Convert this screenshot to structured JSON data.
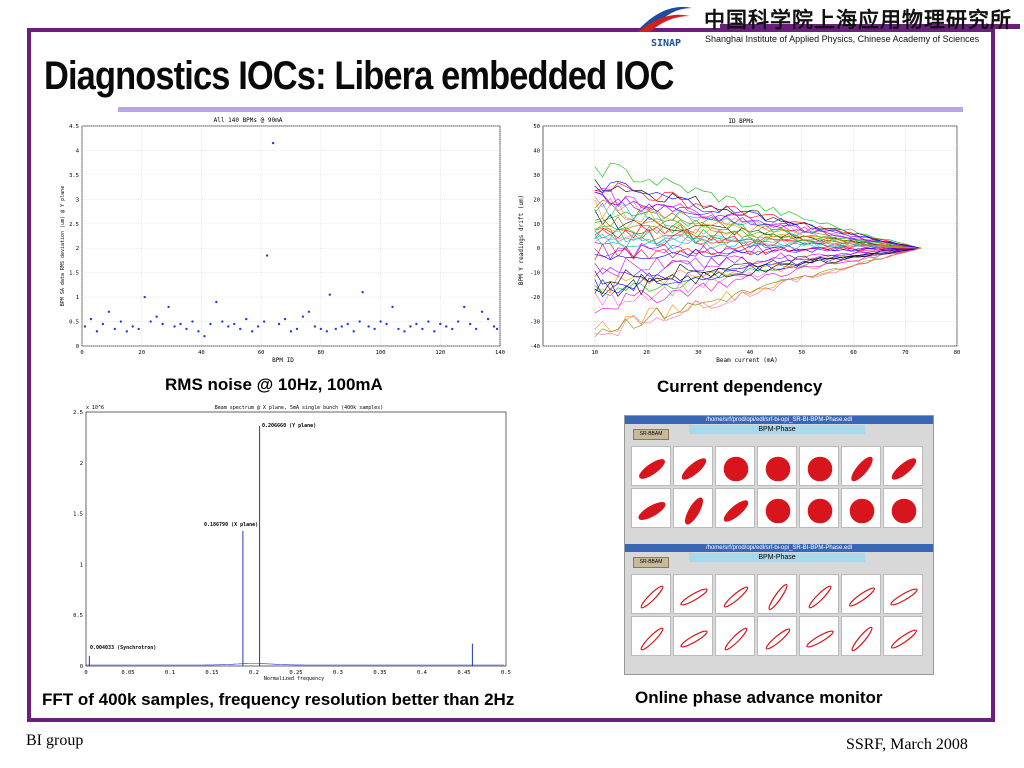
{
  "header": {
    "title": "Diagnostics IOCs: Libera embedded IOC",
    "institute_cn": "中国科学院上海应用物理研究所",
    "institute_en": "Shanghai Institute of Applied Physics, Chinese Academy of Sciences",
    "logo_text": "SINAP"
  },
  "colors": {
    "frame": "#6b1f7c",
    "title_bar": "#b9a6e6",
    "plot_points": "#1f3fd6",
    "phase": "#d8141c"
  },
  "panels": {
    "rms": {
      "caption": "RMS noise @ 10Hz, 100mA",
      "title": "All 140 BPMs @ 90mA",
      "xlabel": "BPM ID",
      "ylabel": "BPM SA data RMS deviation (um) @ Y plane",
      "xticks": [
        "0",
        "20",
        "40",
        "60",
        "80",
        "100",
        "120",
        "140"
      ],
      "yticks": [
        "0",
        "0.5",
        "1",
        "1.5",
        "2",
        "2.5",
        "3",
        "3.5",
        "4",
        "4.5"
      ]
    },
    "drift": {
      "caption": "Current dependency",
      "title": "ID BPMs",
      "xlabel": "Beam current (mA)",
      "ylabel": "BPM Y readings drift (um)",
      "xticks": [
        "10",
        "20",
        "30",
        "40",
        "50",
        "60",
        "70",
        "80"
      ],
      "yticks": [
        "-40",
        "-30",
        "-20",
        "-10",
        "0",
        "10",
        "20",
        "30",
        "40",
        "50"
      ]
    },
    "fft": {
      "caption": "FFT of 400k samples, frequency resolution better than 2Hz",
      "title": "Beam spectrum @ X plane, 5mA single bunch (400k samples)",
      "xlabel": "Normalized frequency",
      "exponent": "x 10^6",
      "xticks": [
        "0",
        "0.05",
        "0.1",
        "0.15",
        "0.2",
        "0.25",
        "0.3",
        "0.35",
        "0.4",
        "0.45",
        "0.5"
      ],
      "yticks": [
        "0",
        "0.5",
        "1",
        "1.5",
        "2",
        "2.5"
      ],
      "annotations": {
        "y_peak": "0.206660 (Y plane)",
        "x_peak": "0.186790 (X plane)",
        "sync": "0.004033 (Synchrotron)"
      }
    },
    "phase": {
      "caption": "Online phase advance monitor",
      "window_title": "/home/srf/prod/opi/edl/srf-bi-opi_SR-BI-BPM-Phase.edl",
      "label": "BPM-Phase",
      "button": "SR-BBAM"
    }
  },
  "footer": {
    "left": "BI group",
    "right": "SSRF, March 2008"
  },
  "chart_data": [
    {
      "type": "scatter",
      "title": "All 140 BPMs @ 90mA",
      "xlabel": "BPM ID",
      "ylabel": "BPM SA data RMS deviation (um) @ Y plane",
      "xlim": [
        0,
        140
      ],
      "ylim": [
        0,
        4.5
      ],
      "x": [
        1,
        3,
        5,
        7,
        9,
        11,
        13,
        15,
        17,
        19,
        21,
        23,
        25,
        27,
        29,
        31,
        33,
        35,
        37,
        39,
        41,
        43,
        45,
        47,
        49,
        51,
        53,
        55,
        57,
        59,
        61,
        62,
        64,
        66,
        68,
        70,
        72,
        74,
        76,
        78,
        80,
        82,
        83,
        85,
        87,
        89,
        91,
        93,
        94,
        96,
        98,
        100,
        102,
        104,
        106,
        108,
        110,
        112,
        114,
        116,
        118,
        120,
        122,
        124,
        126,
        128,
        130,
        132,
        134,
        136,
        138,
        139
      ],
      "y": [
        0.4,
        0.55,
        0.3,
        0.45,
        0.7,
        0.35,
        0.5,
        0.3,
        0.4,
        0.35,
        1.0,
        0.5,
        0.6,
        0.45,
        0.8,
        0.4,
        0.45,
        0.35,
        0.5,
        0.3,
        0.2,
        0.45,
        0.9,
        0.5,
        0.4,
        0.45,
        0.35,
        0.55,
        0.3,
        0.4,
        0.5,
        1.85,
        4.15,
        0.45,
        0.55,
        0.3,
        0.35,
        0.6,
        0.7,
        0.4,
        0.35,
        0.3,
        1.05,
        0.35,
        0.4,
        0.45,
        0.3,
        0.5,
        1.1,
        0.4,
        0.35,
        0.5,
        0.45,
        0.8,
        0.35,
        0.3,
        0.4,
        0.45,
        0.35,
        0.5,
        0.3,
        0.45,
        0.4,
        0.35,
        0.5,
        0.8,
        0.45,
        0.35,
        0.7,
        0.55,
        0.4,
        0.35
      ]
    },
    {
      "type": "line",
      "title": "ID BPMs",
      "xlabel": "Beam current (mA)",
      "ylabel": "BPM Y readings drift (um)",
      "xlim": [
        0,
        80
      ],
      "ylim": [
        -40,
        50
      ],
      "series_count": 40
    },
    {
      "type": "line",
      "title": "Beam spectrum @ X plane, 5mA single bunch (400k samples)",
      "xlabel": "Normalized frequency",
      "xlim": [
        0,
        0.5
      ],
      "ylim": [
        0,
        2.5
      ],
      "y_exponent": "x 10^6",
      "peaks": [
        {
          "x": 0.004033,
          "y": 0.1
        },
        {
          "x": 0.18679,
          "y": 1.33
        },
        {
          "x": 0.20666,
          "y": 2.36
        },
        {
          "x": 0.46,
          "y": 0.22
        }
      ]
    }
  ]
}
